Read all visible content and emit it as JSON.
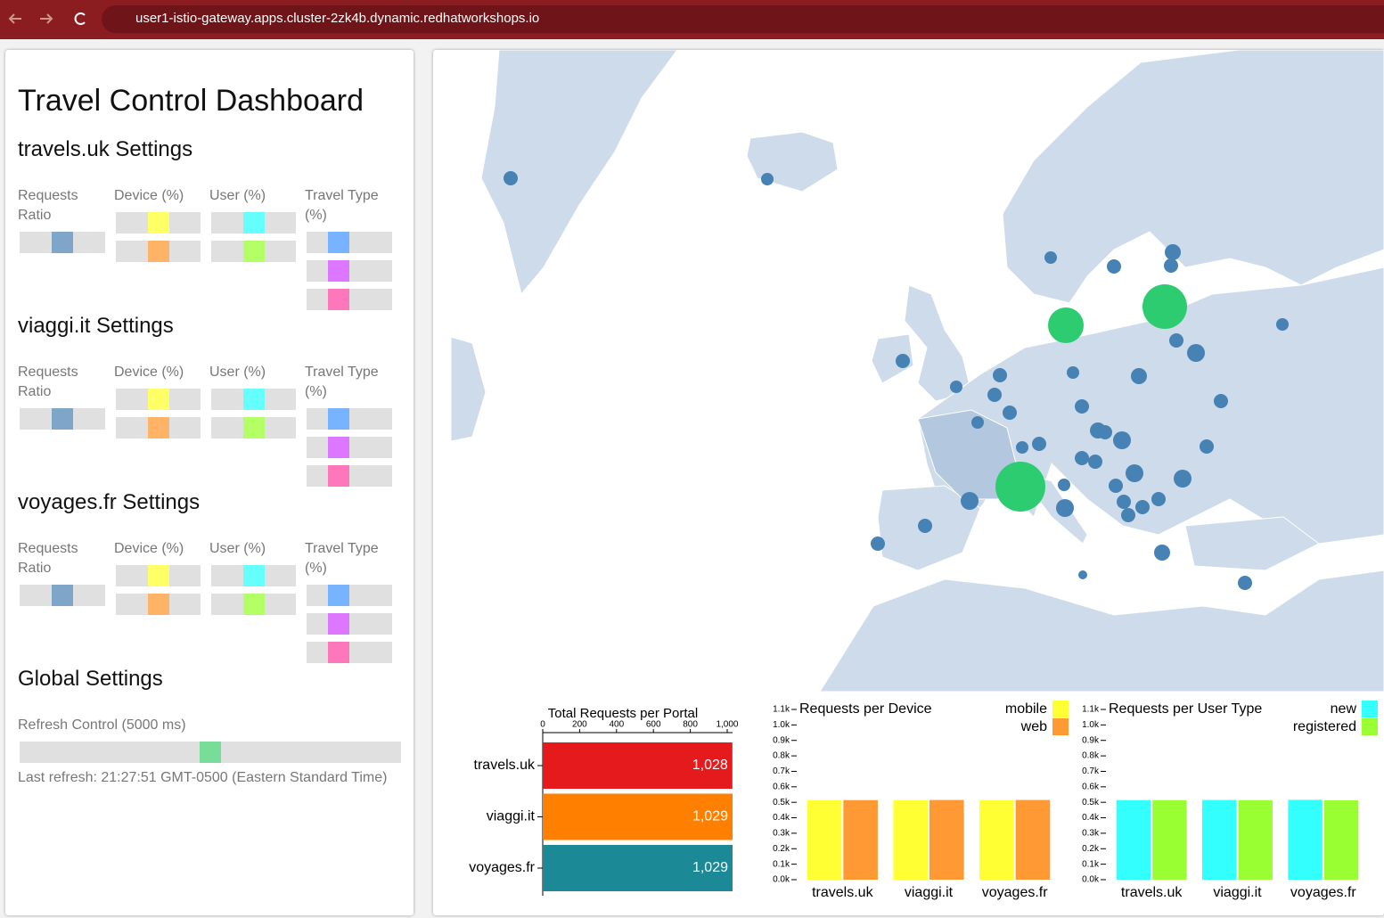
{
  "browser": {
    "url": "user1-istio-gateway.apps.cluster-2zk4b.dynamic.redhatworkshops.io"
  },
  "dashboard": {
    "title": "Travel Control Dashboard",
    "portals": [
      {
        "heading": "travels.uk Settings",
        "labels": [
          "Requests Ratio",
          "Device (%)",
          "User (%)",
          "Travel Type (%)"
        ]
      },
      {
        "heading": "viaggi.it Settings",
        "labels": [
          "Requests Ratio",
          "Device (%)",
          "User (%)",
          "Travel Type (%)"
        ]
      },
      {
        "heading": "voyages.fr Settings",
        "labels": [
          "Requests Ratio",
          "Device (%)",
          "User (%)",
          "Travel Type (%)"
        ]
      }
    ],
    "global": {
      "heading": "Global Settings",
      "refresh_label": "Refresh Control (5000 ms)",
      "last_refresh": "Last refresh: 21:27:51 GMT-0500 (Eastern Standard Time)"
    }
  },
  "chart_data": [
    {
      "type": "bar",
      "orientation": "horizontal",
      "title": "Total Requests per Portal",
      "categories": [
        "travels.uk",
        "viaggi.it",
        "voyages.fr"
      ],
      "values": [
        1028,
        1029,
        1029
      ],
      "value_labels": [
        "1,028",
        "1,029",
        "1,029"
      ],
      "colors": [
        "#e41a1c",
        "#ff7f00",
        "#1b8a96"
      ],
      "xlim": [
        0,
        1029
      ],
      "xticks": [
        0,
        200,
        400,
        600,
        800,
        {
          "value": 1000,
          "label": "1,000"
        }
      ]
    },
    {
      "type": "grouped-bar",
      "title": "Requests per Device",
      "categories": [
        "travels.uk",
        "viaggi.it",
        "voyages.fr"
      ],
      "series": [
        {
          "name": "mobile",
          "color": "#ffff33",
          "values": [
            514,
            514,
            514
          ]
        },
        {
          "name": "web",
          "color": "#ff9933",
          "values": [
            514,
            515,
            515
          ]
        }
      ],
      "ylim": [
        0,
        1100
      ],
      "legend": "top-right",
      "yticks": [
        {
          "value": 0,
          "label": "0.0k"
        },
        {
          "value": 100,
          "label": "0.1k"
        },
        {
          "value": 200,
          "label": "0.2k"
        },
        {
          "value": 300,
          "label": "0.3k"
        },
        {
          "value": 400,
          "label": "0.4k"
        },
        {
          "value": 500,
          "label": "0.5k"
        },
        {
          "value": 600,
          "label": "0.6k"
        },
        {
          "value": 700,
          "label": "0.7k"
        },
        {
          "value": 800,
          "label": "0.8k"
        },
        {
          "value": 900,
          "label": "0.9k"
        },
        {
          "value": 1000,
          "label": "1.0k"
        },
        {
          "value": 1100,
          "label": "1.1k"
        }
      ]
    },
    {
      "type": "grouped-bar",
      "title": "Requests per User Type",
      "categories": [
        "travels.uk",
        "viaggi.it",
        "voyages.fr"
      ],
      "series": [
        {
          "name": "new",
          "color": "#33ffff",
          "values": [
            514,
            515,
            516
          ]
        },
        {
          "name": "registered",
          "color": "#99ff33",
          "values": [
            514,
            514,
            513
          ]
        }
      ],
      "ylim": [
        0,
        1100
      ],
      "legend": "top-right",
      "yticks": [
        {
          "value": 0,
          "label": "0.0k"
        },
        {
          "value": 100,
          "label": "0.1k"
        },
        {
          "value": 200,
          "label": "0.2k"
        },
        {
          "value": 300,
          "label": "0.3k"
        },
        {
          "value": 400,
          "label": "0.4k"
        },
        {
          "value": 500,
          "label": "0.5k"
        },
        {
          "value": 600,
          "label": "0.6k"
        },
        {
          "value": 700,
          "label": "0.7k"
        },
        {
          "value": 800,
          "label": "0.8k"
        },
        {
          "value": 900,
          "label": "0.9k"
        },
        {
          "value": 1000,
          "label": "1.0k"
        },
        {
          "value": 1100,
          "label": "1.1k"
        }
      ]
    }
  ]
}
